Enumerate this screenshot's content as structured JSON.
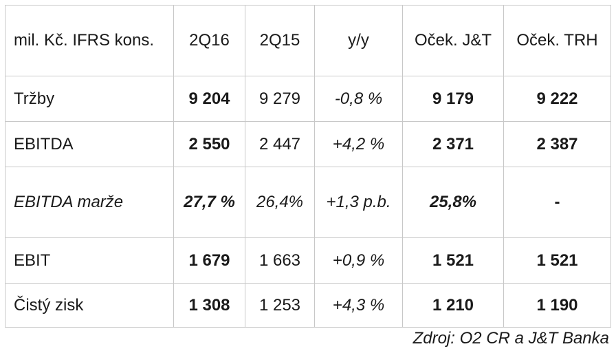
{
  "table": {
    "header": {
      "label": "mil. Kč. IFRS kons.",
      "cols": [
        "2Q16",
        "2Q15",
        "y/y",
        "Oček. J&T",
        "Oček. TRH"
      ]
    },
    "rows": [
      {
        "label": "Tržby",
        "cells": [
          "9 204",
          "9 279",
          "-0,8 %",
          "9 179",
          "9 222"
        ]
      },
      {
        "label": "EBITDA",
        "cells": [
          "2 550",
          "2 447",
          "+4,2 %",
          "2 371",
          "2 387"
        ]
      },
      {
        "label": "EBITDA marže",
        "cells": [
          "27,7 %",
          "26,4%",
          "+1,3 p.b.",
          "25,8%",
          "-"
        ]
      },
      {
        "label": "EBIT",
        "cells": [
          "1 679",
          "1 663",
          "+0,9 %",
          "1 521",
          "1 521"
        ]
      },
      {
        "label": "Čistý zisk",
        "cells": [
          "1 308",
          "1 253",
          "+4,3 %",
          "1 210",
          "1 190"
        ]
      }
    ]
  },
  "source": "Zdroj: O2 CR a J&T Banka"
}
